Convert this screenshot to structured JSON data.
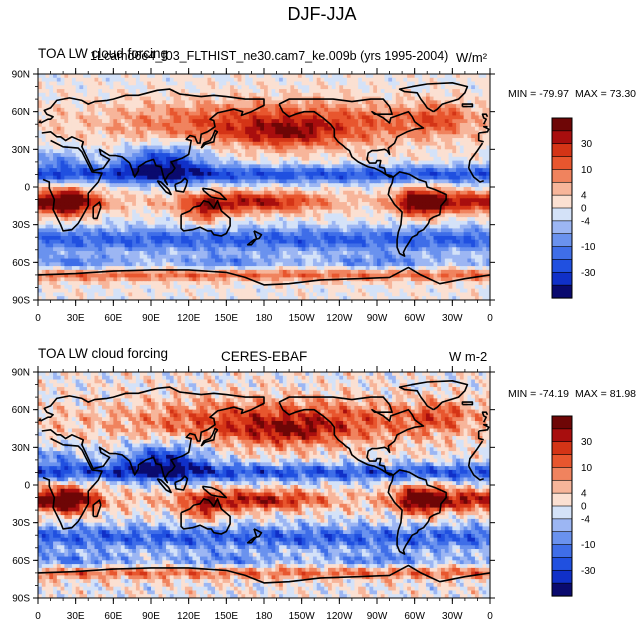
{
  "title": "DJF-JJA",
  "colors": {
    "levels_colors": [
      "#0a0a6e",
      "#1030c8",
      "#2050e0",
      "#3f6ee8",
      "#6a92ee",
      "#9cb6f3",
      "#d4e2f8",
      "#fbe0d2",
      "#f7b59a",
      "#f0835e",
      "#e8562e",
      "#d43416",
      "#a80e0e",
      "#6e0606"
    ]
  },
  "chart_data": [
    {
      "type": "heatmap",
      "title_left": "TOA LW cloud forcing",
      "title_center": "1Lcamd6e4_f03_FLTHIST_ne30.cam7_ke.009b (yrs 1995-2004)",
      "title_right": "W/m²",
      "min_label": "MIN = -79.97",
      "max_label": "MAX =  73.30",
      "y_ticks": [
        "90N",
        "60N",
        "30N",
        "0",
        "30S",
        "60S",
        "90S"
      ],
      "x_ticks": [
        "0",
        "30E",
        "60E",
        "90E",
        "120E",
        "150E",
        "180",
        "150W",
        "120W",
        "90W",
        "60W",
        "30W",
        "0"
      ],
      "colorbar_labels": [
        "30",
        "10",
        "4",
        "0",
        "-4",
        "-10",
        "-30"
      ]
    },
    {
      "type": "heatmap",
      "title_left": "TOA LW cloud forcing",
      "title_center": "CERES-EBAF",
      "title_right": "W m-2",
      "min_label": "MIN = -74.19",
      "max_label": "MAX =  81.98",
      "y_ticks": [
        "90N",
        "60N",
        "30N",
        "0",
        "30S",
        "60S",
        "90S"
      ],
      "x_ticks": [
        "0",
        "30E",
        "60E",
        "90E",
        "120E",
        "150E",
        "180",
        "150W",
        "120W",
        "90W",
        "60W",
        "30W",
        "0"
      ],
      "colorbar_labels": [
        "30",
        "10",
        "4",
        "0",
        "-4",
        "-10",
        "-30"
      ]
    }
  ]
}
